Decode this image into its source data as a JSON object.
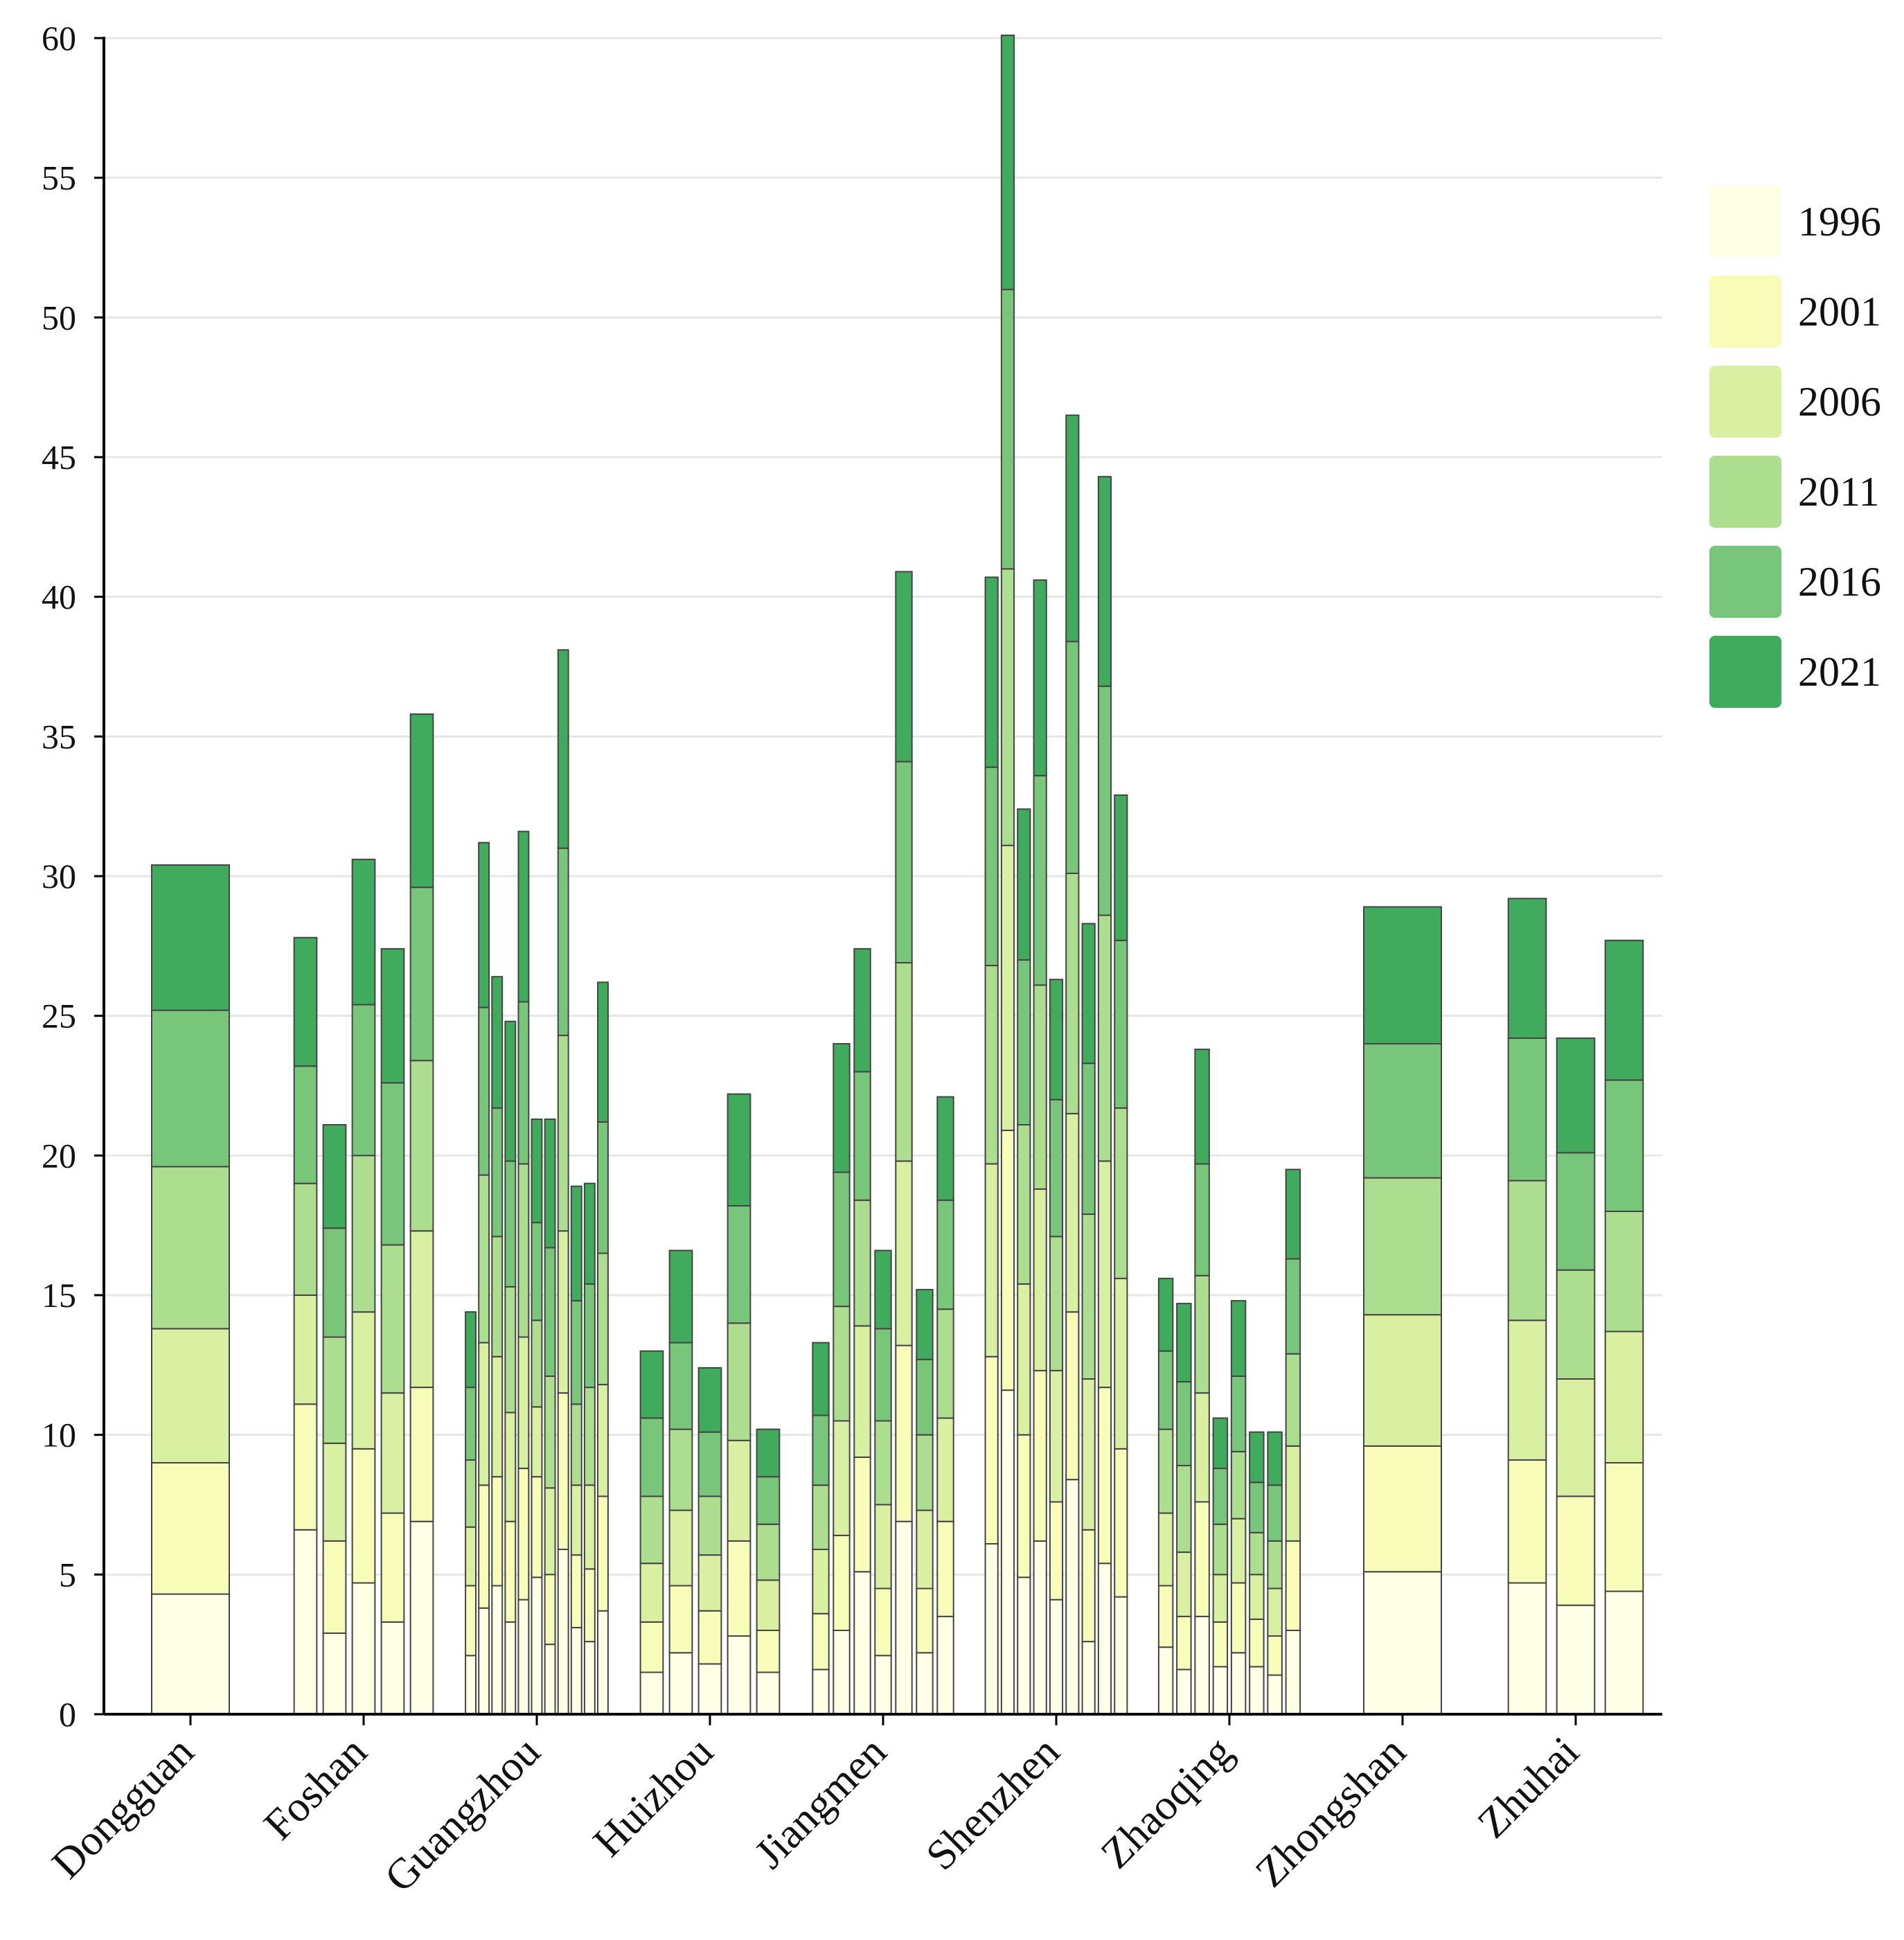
{
  "chart_data": {
    "type": "bar",
    "stacked": true,
    "title": "",
    "xlabel": "",
    "ylabel": "",
    "ylim": [
      0,
      60
    ],
    "yticks": [
      0,
      5,
      10,
      15,
      20,
      25,
      30,
      35,
      40,
      45,
      50,
      55,
      60
    ],
    "grid": true,
    "legend_position": "right",
    "layers": [
      "1996",
      "2001",
      "2006",
      "2011",
      "2016",
      "2021"
    ],
    "colors": {
      "1996": "#ffffe5",
      "2001": "#f7fcb9",
      "2006": "#d9f0a3",
      "2011": "#addd8e",
      "2016": "#78c679",
      "2021": "#41ab5d"
    },
    "stroke_color": "#444444",
    "cities": [
      {
        "name": "Dongguan",
        "bars": [
          [
            0,
            4.3,
            9.0,
            13.8,
            19.6,
            25.2,
            30.4
          ]
        ]
      },
      {
        "name": "Foshan",
        "bars": [
          [
            0,
            6.6,
            11.1,
            15.0,
            19.0,
            23.2,
            27.8
          ],
          [
            0,
            2.9,
            6.2,
            9.7,
            13.5,
            17.4,
            21.1
          ],
          [
            0,
            4.7,
            9.5,
            14.4,
            20.0,
            25.4,
            30.6
          ],
          [
            0,
            3.3,
            7.2,
            11.5,
            16.8,
            22.6,
            27.4
          ],
          [
            0,
            6.9,
            11.7,
            17.3,
            23.4,
            29.6,
            35.8
          ]
        ]
      },
      {
        "name": "Guangzhou",
        "bars": [
          [
            0,
            2.1,
            4.6,
            6.7,
            9.1,
            11.7,
            14.4
          ],
          [
            0,
            3.8,
            8.2,
            13.3,
            19.3,
            25.3,
            31.2
          ],
          [
            0,
            4.6,
            8.5,
            12.8,
            17.1,
            21.7,
            26.4
          ],
          [
            0,
            3.3,
            6.9,
            10.8,
            15.3,
            19.8,
            24.8
          ],
          [
            0,
            4.1,
            8.8,
            13.5,
            19.7,
            25.5,
            31.6
          ],
          [
            0,
            4.9,
            8.5,
            11.0,
            14.1,
            17.6,
            21.3
          ],
          [
            0,
            2.5,
            5.0,
            8.1,
            12.1,
            16.7,
            21.3
          ],
          [
            0,
            5.9,
            11.5,
            17.3,
            24.3,
            31.0,
            38.1
          ],
          [
            0,
            3.1,
            5.7,
            8.2,
            11.1,
            14.8,
            18.9
          ],
          [
            0,
            2.6,
            5.2,
            8.2,
            11.7,
            15.4,
            19.0
          ],
          [
            0,
            3.7,
            7.8,
            11.8,
            16.5,
            21.2,
            26.2
          ]
        ]
      },
      {
        "name": "Huizhou",
        "bars": [
          [
            0,
            1.5,
            3.3,
            5.4,
            7.8,
            10.6,
            13.0
          ],
          [
            0,
            2.2,
            4.6,
            7.3,
            10.2,
            13.3,
            16.6
          ],
          [
            0,
            1.8,
            3.7,
            5.7,
            7.8,
            10.1,
            12.4
          ],
          [
            0,
            2.8,
            6.2,
            9.8,
            14.0,
            18.2,
            22.2
          ],
          [
            0,
            1.5,
            3.0,
            4.8,
            6.8,
            8.5,
            10.2
          ]
        ]
      },
      {
        "name": "Jiangmen",
        "bars": [
          [
            0,
            1.6,
            3.6,
            5.9,
            8.2,
            10.7,
            13.3
          ],
          [
            0,
            3.0,
            6.4,
            10.5,
            14.6,
            19.4,
            24.0
          ],
          [
            0,
            5.1,
            9.2,
            13.9,
            18.4,
            23.0,
            27.4
          ],
          [
            0,
            2.1,
            4.5,
            7.5,
            10.5,
            13.8,
            16.6
          ],
          [
            0,
            6.9,
            13.2,
            19.8,
            26.9,
            34.1,
            40.9
          ],
          [
            0,
            2.2,
            4.5,
            7.3,
            10.0,
            12.7,
            15.2
          ],
          [
            0,
            3.5,
            6.9,
            10.6,
            14.5,
            18.4,
            22.1
          ]
        ]
      },
      {
        "name": "Shenzhen",
        "bars": [
          [
            0,
            6.1,
            12.8,
            19.7,
            26.8,
            33.9,
            40.7
          ],
          [
            0,
            11.6,
            20.9,
            31.1,
            41.0,
            51.0,
            60.1
          ],
          [
            0,
            4.9,
            10.0,
            15.4,
            21.1,
            27.0,
            32.4
          ],
          [
            0,
            6.2,
            12.3,
            18.8,
            26.1,
            33.6,
            40.6
          ],
          [
            0,
            4.1,
            7.6,
            12.3,
            17.1,
            22.0,
            26.3
          ],
          [
            0,
            8.4,
            14.4,
            21.5,
            30.1,
            38.4,
            46.5
          ],
          [
            0,
            2.6,
            6.6,
            12.0,
            17.9,
            23.3,
            28.3
          ],
          [
            0,
            5.4,
            11.7,
            19.8,
            28.6,
            36.8,
            44.3
          ],
          [
            0,
            4.2,
            9.5,
            15.6,
            21.7,
            27.7,
            32.9
          ]
        ]
      },
      {
        "name": "Zhaoqing",
        "bars": [
          [
            0,
            2.4,
            4.6,
            7.2,
            10.2,
            13.0,
            15.6
          ],
          [
            0,
            1.6,
            3.5,
            5.8,
            8.9,
            11.9,
            14.7
          ],
          [
            0,
            3.5,
            7.6,
            11.5,
            15.7,
            19.7,
            23.8
          ],
          [
            0,
            1.7,
            3.3,
            5.0,
            6.8,
            8.8,
            10.6
          ],
          [
            0,
            2.2,
            4.7,
            7.0,
            9.4,
            12.1,
            14.8
          ],
          [
            0,
            1.7,
            3.4,
            5.0,
            6.5,
            8.3,
            10.1
          ],
          [
            0,
            1.4,
            2.8,
            4.5,
            6.2,
            8.2,
            10.1
          ],
          [
            0,
            3.0,
            6.2,
            9.6,
            12.9,
            16.3,
            19.5
          ]
        ]
      },
      {
        "name": "Zhongshan",
        "bars": [
          [
            0,
            5.1,
            9.6,
            14.3,
            19.2,
            24.0,
            28.9
          ]
        ]
      },
      {
        "name": "Zhuhai",
        "bars": [
          [
            0,
            4.7,
            9.1,
            14.1,
            19.1,
            24.2,
            29.2
          ],
          [
            0,
            3.9,
            7.8,
            12.0,
            15.9,
            20.1,
            24.2
          ],
          [
            0,
            4.4,
            9.0,
            13.7,
            18.0,
            22.7,
            27.7
          ]
        ]
      }
    ]
  }
}
